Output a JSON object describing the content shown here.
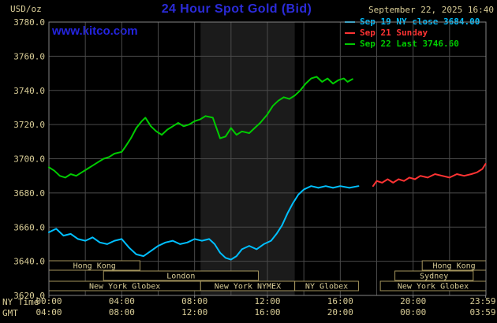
{
  "header": {
    "units_label": "USD/oz",
    "title": "24 Hour Spot Gold (Bid)",
    "datetime": "September 22, 2025 16:40",
    "watermark": "www.kitco.com"
  },
  "colors": {
    "background": "#000000",
    "title_blue": "#2b2bd8",
    "tan_text": "#d8cc96",
    "tan_border": "#a3945c",
    "grid": "#4a4a4a",
    "plot_border": "#858585",
    "highlight_band": "#1b1b1b",
    "close_line": "#00bfff",
    "sunday_line": "#ff3333",
    "last_line": "#00cc00"
  },
  "legend": [
    {
      "label": "Sep 19 NY close 3684.00",
      "color": "#00bfff"
    },
    {
      "label": "Sep 21 Sunday",
      "color": "#ff3333"
    },
    {
      "label": "Sep 22 Last 3746.60",
      "color": "#00cc00"
    }
  ],
  "axes": {
    "ny_row_label": "NY Time",
    "gmt_row_label": "GMT",
    "y_ticks": [
      "3780.0",
      "3760.0",
      "3740.0",
      "3720.0",
      "3700.0",
      "3680.0",
      "3660.0",
      "3640.0",
      "3620.0"
    ],
    "x_ticks": [
      {
        "hour": 0,
        "ny": "00:00",
        "gmt": "04:00"
      },
      {
        "hour": 4,
        "ny": "04:00",
        "gmt": "08:00"
      },
      {
        "hour": 8,
        "ny": "08:00",
        "gmt": "12:00"
      },
      {
        "hour": 12,
        "ny": "12:00",
        "gmt": "16:00"
      },
      {
        "hour": 16,
        "ny": "16:00",
        "gmt": "20:00"
      },
      {
        "hour": 20,
        "ny": "20:00",
        "gmt": "00:00"
      },
      {
        "hour": 23.983,
        "ny": "23:59",
        "gmt": "03:59"
      }
    ]
  },
  "sessions": [
    {
      "row": 0,
      "label": "Hong Kong",
      "start": 0,
      "end": 5
    },
    {
      "row": 0,
      "label": "Hong Kong",
      "start": 20.5,
      "end": 24
    },
    {
      "row": 1,
      "label": "London",
      "start": 3,
      "end": 11.5
    },
    {
      "row": 1,
      "label": "Sydney",
      "start": 19,
      "end": 23.3
    },
    {
      "row": 2,
      "label": "New York Globex",
      "start": 0,
      "end": 8.33
    },
    {
      "row": 2,
      "label": "New York NYMEX",
      "start": 8.33,
      "end": 13.5
    },
    {
      "row": 2,
      "label": "NY Globex",
      "start": 13.5,
      "end": 17
    },
    {
      "row": 2,
      "label": "New York Globex",
      "start": 18.2,
      "end": 24
    }
  ],
  "chart_data": {
    "type": "line",
    "title": "24 Hour Spot Gold (Bid)",
    "xlabel": "NY Time (hours)",
    "ylabel": "USD/oz",
    "xlim": [
      0,
      24
    ],
    "ylim": [
      3620,
      3780
    ],
    "y_tick_step": 20,
    "grid": "on",
    "highlight_band": {
      "name": "New York NYMEX session",
      "start_hour": 8.33,
      "end_hour": 13.5
    },
    "series": [
      {
        "name": "Sep 19 NY close 3684.00",
        "color": "#00bfff",
        "points": [
          [
            0,
            3657
          ],
          [
            0.4,
            3659
          ],
          [
            0.8,
            3655
          ],
          [
            1.2,
            3656
          ],
          [
            1.6,
            3653
          ],
          [
            2,
            3652
          ],
          [
            2.4,
            3654
          ],
          [
            2.8,
            3651
          ],
          [
            3.2,
            3650
          ],
          [
            3.6,
            3652
          ],
          [
            4,
            3653
          ],
          [
            4.4,
            3648
          ],
          [
            4.8,
            3644
          ],
          [
            5.2,
            3643
          ],
          [
            5.6,
            3646
          ],
          [
            6,
            3649
          ],
          [
            6.4,
            3651
          ],
          [
            6.8,
            3652
          ],
          [
            7.2,
            3650
          ],
          [
            7.6,
            3651
          ],
          [
            8,
            3653
          ],
          [
            8.4,
            3652
          ],
          [
            8.8,
            3653
          ],
          [
            9.1,
            3650
          ],
          [
            9.4,
            3645
          ],
          [
            9.7,
            3642
          ],
          [
            10,
            3641
          ],
          [
            10.3,
            3643
          ],
          [
            10.6,
            3647
          ],
          [
            11,
            3649
          ],
          [
            11.4,
            3647
          ],
          [
            11.8,
            3650
          ],
          [
            12.2,
            3652
          ],
          [
            12.5,
            3656
          ],
          [
            12.8,
            3661
          ],
          [
            13.1,
            3668
          ],
          [
            13.4,
            3674
          ],
          [
            13.7,
            3679
          ],
          [
            14,
            3682
          ],
          [
            14.4,
            3684
          ],
          [
            14.8,
            3683
          ],
          [
            15.2,
            3684
          ],
          [
            15.6,
            3683
          ],
          [
            16,
            3684
          ],
          [
            16.5,
            3683
          ],
          [
            17,
            3684
          ]
        ]
      },
      {
        "name": "Sep 21 Sunday",
        "color": "#ff3333",
        "points": [
          [
            17.8,
            3684
          ],
          [
            18,
            3687
          ],
          [
            18.3,
            3686
          ],
          [
            18.6,
            3688
          ],
          [
            18.9,
            3686
          ],
          [
            19.2,
            3688
          ],
          [
            19.5,
            3687
          ],
          [
            19.8,
            3689
          ],
          [
            20.1,
            3688
          ],
          [
            20.4,
            3690
          ],
          [
            20.8,
            3689
          ],
          [
            21.2,
            3691
          ],
          [
            21.6,
            3690
          ],
          [
            22,
            3689
          ],
          [
            22.4,
            3691
          ],
          [
            22.8,
            3690
          ],
          [
            23.2,
            3691
          ],
          [
            23.5,
            3692
          ],
          [
            23.8,
            3694
          ],
          [
            23.98,
            3697
          ]
        ]
      },
      {
        "name": "Sep 22 Last 3746.60",
        "color": "#00cc00",
        "points": [
          [
            0,
            3695
          ],
          [
            0.3,
            3693
          ],
          [
            0.6,
            3690
          ],
          [
            0.9,
            3689
          ],
          [
            1.2,
            3691
          ],
          [
            1.5,
            3690
          ],
          [
            1.8,
            3692
          ],
          [
            2.1,
            3694
          ],
          [
            2.4,
            3696
          ],
          [
            2.7,
            3698
          ],
          [
            3,
            3700
          ],
          [
            3.3,
            3701
          ],
          [
            3.6,
            3703
          ],
          [
            4,
            3704
          ],
          [
            4.2,
            3707
          ],
          [
            4.5,
            3712
          ],
          [
            4.8,
            3718
          ],
          [
            5.1,
            3722
          ],
          [
            5.3,
            3724
          ],
          [
            5.6,
            3719
          ],
          [
            5.9,
            3716
          ],
          [
            6.2,
            3714
          ],
          [
            6.5,
            3717
          ],
          [
            6.8,
            3719
          ],
          [
            7.1,
            3721
          ],
          [
            7.4,
            3719
          ],
          [
            7.7,
            3720
          ],
          [
            8,
            3722
          ],
          [
            8.3,
            3723
          ],
          [
            8.6,
            3725
          ],
          [
            9,
            3724
          ],
          [
            9.2,
            3718
          ],
          [
            9.4,
            3712
          ],
          [
            9.7,
            3713
          ],
          [
            10,
            3718
          ],
          [
            10.3,
            3714
          ],
          [
            10.6,
            3716
          ],
          [
            11,
            3715
          ],
          [
            11.3,
            3718
          ],
          [
            11.6,
            3721
          ],
          [
            12,
            3726
          ],
          [
            12.3,
            3731
          ],
          [
            12.6,
            3734
          ],
          [
            12.9,
            3736
          ],
          [
            13.2,
            3735
          ],
          [
            13.5,
            3737
          ],
          [
            13.8,
            3740
          ],
          [
            14.1,
            3744
          ],
          [
            14.4,
            3747
          ],
          [
            14.7,
            3748
          ],
          [
            15,
            3745
          ],
          [
            15.3,
            3747
          ],
          [
            15.6,
            3744
          ],
          [
            15.9,
            3746
          ],
          [
            16.2,
            3747
          ],
          [
            16.4,
            3745
          ],
          [
            16.67,
            3746.6
          ]
        ]
      }
    ]
  }
}
